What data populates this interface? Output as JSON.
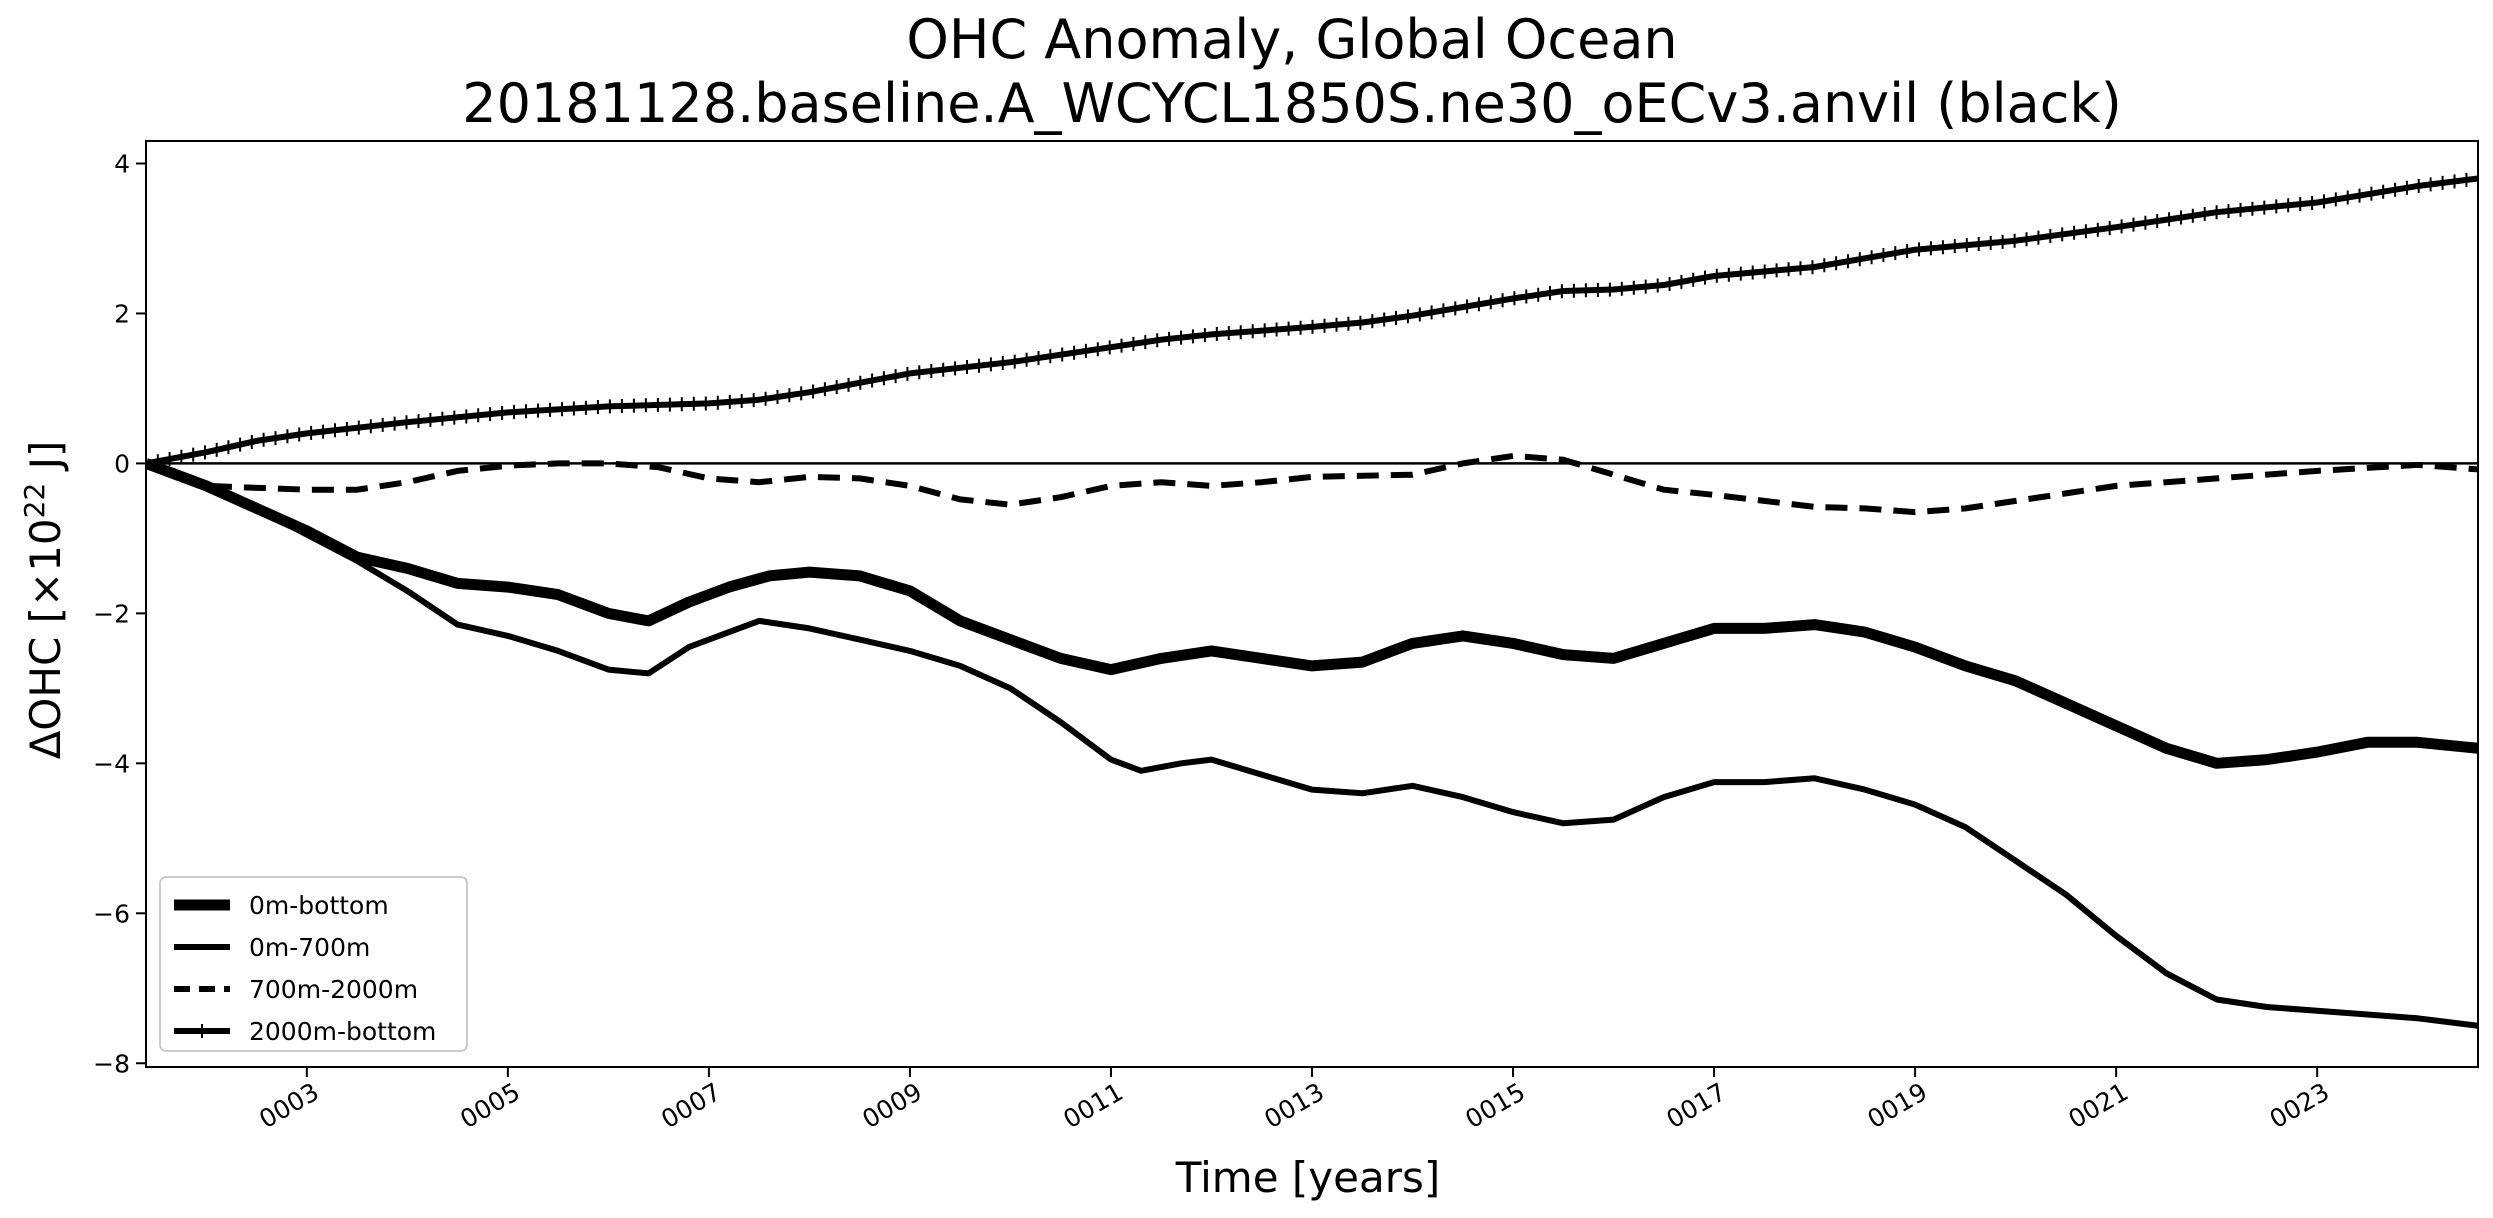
{
  "chart_data": {
    "type": "line",
    "title": "OHC Anomaly, Global Ocean",
    "subtitle": "20181128.baseline.A_WCYCL1850S.ne30_oECv3.anvil (black)",
    "xlabel": "Time [years]",
    "ylabel_main": "ΔOHC [×10",
    "ylabel_sup": "22",
    "ylabel_end": " J]",
    "xlim": [
      1.4,
      24.6
    ],
    "ylim": [
      -8.05,
      4.3
    ],
    "xticks": [
      {
        "value": 3,
        "label": "0003"
      },
      {
        "value": 5,
        "label": "0005"
      },
      {
        "value": 7,
        "label": "0007"
      },
      {
        "value": 9,
        "label": "0009"
      },
      {
        "value": 11,
        "label": "0011"
      },
      {
        "value": 13,
        "label": "0013"
      },
      {
        "value": 15,
        "label": "0015"
      },
      {
        "value": 17,
        "label": "0017"
      },
      {
        "value": 19,
        "label": "0019"
      },
      {
        "value": 21,
        "label": "0021"
      },
      {
        "value": 23,
        "label": "0023"
      }
    ],
    "yticks": [
      {
        "value": 4,
        "label": "4"
      },
      {
        "value": 2,
        "label": "2"
      },
      {
        "value": 0,
        "label": "0"
      },
      {
        "value": -2,
        "label": "−2"
      },
      {
        "value": -4,
        "label": "−4"
      },
      {
        "value": -6,
        "label": "−6"
      },
      {
        "value": -8,
        "label": "−8"
      }
    ],
    "zero_line": true,
    "grid": false,
    "legend_position": "lower-left",
    "series": [
      {
        "name": "0m-bottom",
        "style": "thick",
        "color": "#000000",
        "points": [
          [
            1.4,
            0
          ],
          [
            2.0,
            -0.3
          ],
          [
            2.5,
            -0.6
          ],
          [
            3.0,
            -0.9
          ],
          [
            3.5,
            -1.25
          ],
          [
            4.0,
            -1.4
          ],
          [
            4.5,
            -1.6
          ],
          [
            5.0,
            -1.65
          ],
          [
            5.5,
            -1.75
          ],
          [
            6.0,
            -2.0
          ],
          [
            6.4,
            -2.1
          ],
          [
            6.8,
            -1.85
          ],
          [
            7.2,
            -1.65
          ],
          [
            7.6,
            -1.5
          ],
          [
            8.0,
            -1.45
          ],
          [
            8.5,
            -1.5
          ],
          [
            9.0,
            -1.7
          ],
          [
            9.5,
            -2.1
          ],
          [
            10.0,
            -2.35
          ],
          [
            10.5,
            -2.6
          ],
          [
            11.0,
            -2.75
          ],
          [
            11.5,
            -2.6
          ],
          [
            12.0,
            -2.5
          ],
          [
            12.5,
            -2.6
          ],
          [
            13.0,
            -2.7
          ],
          [
            13.5,
            -2.65
          ],
          [
            14.0,
            -2.4
          ],
          [
            14.5,
            -2.3
          ],
          [
            15.0,
            -2.4
          ],
          [
            15.5,
            -2.55
          ],
          [
            16.0,
            -2.6
          ],
          [
            16.5,
            -2.4
          ],
          [
            17.0,
            -2.2
          ],
          [
            17.5,
            -2.2
          ],
          [
            18.0,
            -2.15
          ],
          [
            18.5,
            -2.25
          ],
          [
            19.0,
            -2.45
          ],
          [
            19.5,
            -2.7
          ],
          [
            20.0,
            -2.9
          ],
          [
            20.5,
            -3.2
          ],
          [
            21.0,
            -3.5
          ],
          [
            21.5,
            -3.8
          ],
          [
            22.0,
            -4.0
          ],
          [
            22.5,
            -3.95
          ],
          [
            23.0,
            -3.85
          ],
          [
            23.5,
            -3.72
          ],
          [
            24.0,
            -3.72
          ],
          [
            24.6,
            -3.8
          ]
        ]
      },
      {
        "name": "0m-700m",
        "style": "solid",
        "color": "#000000",
        "points": [
          [
            1.4,
            0
          ],
          [
            2.0,
            -0.3
          ],
          [
            2.5,
            -0.6
          ],
          [
            3.0,
            -0.95
          ],
          [
            3.5,
            -1.3
          ],
          [
            4.0,
            -1.7
          ],
          [
            4.5,
            -2.15
          ],
          [
            5.0,
            -2.3
          ],
          [
            5.5,
            -2.5
          ],
          [
            6.0,
            -2.75
          ],
          [
            6.4,
            -2.8
          ],
          [
            6.8,
            -2.45
          ],
          [
            7.2,
            -2.25
          ],
          [
            7.5,
            -2.1
          ],
          [
            8.0,
            -2.2
          ],
          [
            8.5,
            -2.35
          ],
          [
            9.0,
            -2.5
          ],
          [
            9.5,
            -2.7
          ],
          [
            10.0,
            -3.0
          ],
          [
            10.5,
            -3.45
          ],
          [
            11.0,
            -3.95
          ],
          [
            11.3,
            -4.1
          ],
          [
            11.7,
            -4.0
          ],
          [
            12.0,
            -3.95
          ],
          [
            12.5,
            -4.15
          ],
          [
            13.0,
            -4.35
          ],
          [
            13.5,
            -4.4
          ],
          [
            14.0,
            -4.3
          ],
          [
            14.5,
            -4.45
          ],
          [
            15.0,
            -4.65
          ],
          [
            15.5,
            -4.8
          ],
          [
            16.0,
            -4.75
          ],
          [
            16.5,
            -4.45
          ],
          [
            17.0,
            -4.25
          ],
          [
            17.5,
            -4.25
          ],
          [
            18.0,
            -4.2
          ],
          [
            18.5,
            -4.35
          ],
          [
            19.0,
            -4.55
          ],
          [
            19.5,
            -4.85
          ],
          [
            20.0,
            -5.3
          ],
          [
            20.5,
            -5.75
          ],
          [
            21.0,
            -6.3
          ],
          [
            21.5,
            -6.8
          ],
          [
            22.0,
            -7.15
          ],
          [
            22.5,
            -7.25
          ],
          [
            23.0,
            -7.3
          ],
          [
            23.5,
            -7.35
          ],
          [
            24.0,
            -7.4
          ],
          [
            24.6,
            -7.5
          ]
        ]
      },
      {
        "name": "700m-2000m",
        "style": "dashed",
        "color": "#000000",
        "points": [
          [
            1.4,
            0
          ],
          [
            2.0,
            -0.3
          ],
          [
            3.0,
            -0.35
          ],
          [
            3.5,
            -0.35
          ],
          [
            4.0,
            -0.25
          ],
          [
            4.5,
            -0.1
          ],
          [
            5.0,
            -0.03
          ],
          [
            5.5,
            0
          ],
          [
            6.0,
            0
          ],
          [
            6.5,
            -0.05
          ],
          [
            7.0,
            -0.2
          ],
          [
            7.5,
            -0.25
          ],
          [
            8.0,
            -0.18
          ],
          [
            8.5,
            -0.2
          ],
          [
            9.0,
            -0.3
          ],
          [
            9.5,
            -0.48
          ],
          [
            10.0,
            -0.55
          ],
          [
            10.5,
            -0.45
          ],
          [
            11.0,
            -0.3
          ],
          [
            11.5,
            -0.25
          ],
          [
            12.0,
            -0.3
          ],
          [
            12.5,
            -0.25
          ],
          [
            13.0,
            -0.18
          ],
          [
            14.0,
            -0.15
          ],
          [
            14.5,
            0
          ],
          [
            15.0,
            0.1
          ],
          [
            15.5,
            0.05
          ],
          [
            16.0,
            -0.15
          ],
          [
            16.5,
            -0.35
          ],
          [
            17.0,
            -0.42
          ],
          [
            17.5,
            -0.5
          ],
          [
            18.0,
            -0.58
          ],
          [
            18.5,
            -0.6
          ],
          [
            19.0,
            -0.65
          ],
          [
            19.5,
            -0.6
          ],
          [
            20.0,
            -0.5
          ],
          [
            20.5,
            -0.4
          ],
          [
            21.0,
            -0.3
          ],
          [
            21.5,
            -0.25
          ],
          [
            22.0,
            -0.2
          ],
          [
            23.0,
            -0.1
          ],
          [
            24.0,
            -0.02
          ],
          [
            24.6,
            -0.08
          ]
        ]
      },
      {
        "name": "2000m-bottom",
        "style": "plus",
        "color": "#000000",
        "points": [
          [
            1.4,
            0
          ],
          [
            2.0,
            0.15
          ],
          [
            2.5,
            0.3
          ],
          [
            3.0,
            0.4
          ],
          [
            4.0,
            0.55
          ],
          [
            5.0,
            0.68
          ],
          [
            6.0,
            0.76
          ],
          [
            7.0,
            0.8
          ],
          [
            7.5,
            0.85
          ],
          [
            8.0,
            0.95
          ],
          [
            9.0,
            1.2
          ],
          [
            10.0,
            1.35
          ],
          [
            11.0,
            1.55
          ],
          [
            11.5,
            1.65
          ],
          [
            12.0,
            1.72
          ],
          [
            13.0,
            1.82
          ],
          [
            13.5,
            1.88
          ],
          [
            14.0,
            1.97
          ],
          [
            15.0,
            2.2
          ],
          [
            15.5,
            2.3
          ],
          [
            16.0,
            2.32
          ],
          [
            16.5,
            2.38
          ],
          [
            17.0,
            2.5
          ],
          [
            18.0,
            2.62
          ],
          [
            19.0,
            2.85
          ],
          [
            20.0,
            2.97
          ],
          [
            21.0,
            3.15
          ],
          [
            22.0,
            3.35
          ],
          [
            23.0,
            3.48
          ],
          [
            24.0,
            3.7
          ],
          [
            24.6,
            3.8
          ]
        ]
      }
    ]
  }
}
